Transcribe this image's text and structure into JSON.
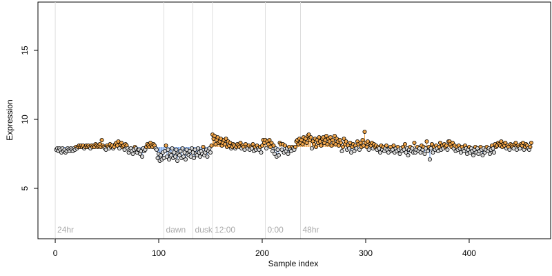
{
  "chart_data": {
    "type": "scatter",
    "x_label": "Sample index",
    "y_label": "Expression",
    "xlim": [
      -16.7,
      478.7
    ],
    "ylim": [
      1.35,
      18.5
    ],
    "xticks": [
      0,
      100,
      200,
      300,
      400
    ],
    "yticks": [
      5,
      10,
      15
    ],
    "baseline": 8.0,
    "color_above": "#f0a54a",
    "color_below": "#6d9de6",
    "markers": [
      {
        "x": 0,
        "label": "24hr"
      },
      {
        "x": 105,
        "label": "dawn"
      },
      {
        "x": 133,
        "label": "dusk"
      },
      {
        "x": 152,
        "label": "12:00"
      },
      {
        "x": 203,
        "label": "0:00"
      },
      {
        "x": 237,
        "label": "48hr"
      }
    ],
    "x": [
      1,
      2,
      3,
      4,
      5,
      6,
      7,
      8,
      9,
      10,
      11,
      12,
      13,
      14,
      15,
      16,
      17,
      18,
      19,
      20,
      21,
      22,
      23,
      24,
      25,
      26,
      27,
      28,
      29,
      30,
      31,
      32,
      33,
      34,
      35,
      36,
      37,
      38,
      39,
      40,
      41,
      42,
      43,
      44,
      45,
      46,
      47,
      48,
      49,
      50,
      51,
      52,
      53,
      54,
      55,
      56,
      57,
      58,
      59,
      60,
      61,
      62,
      63,
      64,
      65,
      66,
      67,
      68,
      69,
      70,
      71,
      72,
      73,
      74,
      75,
      76,
      77,
      78,
      79,
      80,
      81,
      82,
      83,
      84,
      85,
      86,
      87,
      88,
      89,
      90,
      91,
      92,
      93,
      94,
      95,
      96,
      97,
      98,
      99,
      100,
      101,
      102,
      103,
      104,
      105,
      106,
      107,
      108,
      109,
      110,
      111,
      112,
      113,
      114,
      115,
      116,
      117,
      118,
      119,
      120,
      121,
      122,
      123,
      124,
      125,
      126,
      127,
      128,
      129,
      130,
      131,
      132,
      133,
      134,
      135,
      136,
      137,
      138,
      139,
      140,
      141,
      142,
      143,
      144,
      145,
      146,
      147,
      148,
      149,
      150,
      151,
      152,
      153,
      154,
      155,
      156,
      157,
      158,
      159,
      160,
      161,
      162,
      163,
      164,
      165,
      166,
      167,
      168,
      169,
      170,
      171,
      172,
      173,
      174,
      175,
      176,
      177,
      178,
      179,
      180,
      181,
      182,
      183,
      184,
      185,
      186,
      187,
      188,
      189,
      190,
      191,
      192,
      193,
      194,
      195,
      196,
      197,
      198,
      199,
      200,
      201,
      202,
      203,
      204,
      205,
      206,
      207,
      208,
      209,
      210,
      211,
      212,
      213,
      214,
      215,
      216,
      217,
      218,
      219,
      220,
      221,
      222,
      223,
      224,
      225,
      226,
      227,
      228,
      229,
      230,
      231,
      232,
      233,
      234,
      235,
      236,
      237,
      238,
      239,
      240,
      241,
      242,
      243,
      244,
      245,
      246,
      247,
      248,
      249,
      250,
      251,
      252,
      253,
      254,
      255,
      256,
      257,
      258,
      259,
      260,
      261,
      262,
      263,
      264,
      265,
      266,
      267,
      268,
      269,
      270,
      271,
      272,
      273,
      274,
      275,
      276,
      277,
      278,
      279,
      280,
      281,
      282,
      283,
      284,
      285,
      286,
      287,
      288,
      289,
      290,
      291,
      292,
      293,
      294,
      295,
      296,
      297,
      298,
      299,
      300,
      301,
      302,
      303,
      304,
      305,
      306,
      307,
      308,
      309,
      310,
      311,
      312,
      313,
      314,
      315,
      316,
      317,
      318,
      319,
      320,
      321,
      322,
      323,
      324,
      325,
      326,
      327,
      328,
      329,
      330,
      331,
      332,
      333,
      334,
      335,
      336,
      337,
      338,
      339,
      340,
      341,
      342,
      343,
      344,
      345,
      346,
      347,
      348,
      349,
      350,
      351,
      352,
      353,
      354,
      355,
      356,
      357,
      358,
      359,
      360,
      361,
      362,
      363,
      364,
      365,
      366,
      367,
      368,
      369,
      370,
      371,
      372,
      373,
      374,
      375,
      376,
      377,
      378,
      379,
      380,
      381,
      382,
      383,
      384,
      385,
      386,
      387,
      388,
      389,
      390,
      391,
      392,
      393,
      394,
      395,
      396,
      397,
      398,
      399,
      400,
      401,
      402,
      403,
      404,
      405,
      406,
      407,
      408,
      409,
      410,
      411,
      412,
      413,
      414,
      415,
      416,
      417,
      418,
      419,
      420,
      421,
      422,
      423,
      424,
      425,
      426,
      427,
      428,
      429,
      430,
      431,
      432,
      433,
      434,
      435,
      436,
      437,
      438,
      439,
      440,
      441,
      442,
      443,
      444,
      445,
      446,
      447,
      448,
      449,
      450,
      451,
      452,
      453,
      454,
      455,
      456,
      457,
      458,
      459,
      460
    ],
    "values": [
      7.8,
      7.9,
      7.7,
      7.9,
      7.8,
      7.6,
      7.9,
      7.7,
      7.8,
      7.6,
      7.7,
      7.9,
      7.8,
      7.7,
      7.9,
      7.8,
      7.7,
      7.9,
      7.8,
      8.0,
      7.9,
      8.0,
      8.1,
      8.0,
      8.1,
      8.0,
      8.1,
      7.9,
      8.0,
      8.1,
      8.0,
      8.1,
      8.0,
      7.9,
      8.1,
      8.0,
      8.1,
      8.0,
      8.2,
      8.1,
      8.0,
      8.1,
      8.2,
      8.0,
      8.5,
      8.1,
      8.0,
      7.9,
      7.8,
      8.1,
      8.0,
      7.9,
      8.2,
      8.0,
      8.1,
      7.9,
      8.0,
      8.2,
      8.3,
      8.1,
      8.4,
      7.9,
      8.2,
      8.3,
      8.0,
      8.1,
      7.8,
      8.2,
      8.1,
      7.9,
      7.6,
      7.8,
      7.9,
      7.7,
      7.5,
      7.8,
      8.0,
      7.9,
      7.6,
      7.8,
      7.8,
      7.5,
      7.7,
      7.3,
      7.9,
      7.7,
      7.8,
      8.0,
      8.2,
      8.1,
      8.0,
      8.3,
      8.1,
      8.0,
      8.2,
      8.1,
      7.9,
      7.8,
      7.2,
      7.5,
      7.0,
      7.4,
      7.1,
      7.6,
      7.2,
      7.7,
      8.1,
      7.3,
      7.8,
      7.1,
      7.5,
      7.4,
      7.9,
      7.2,
      7.6,
      7.3,
      7.8,
      7.0,
      7.5,
      7.4,
      7.7,
      7.2,
      7.9,
      7.3,
      7.6,
      7.1,
      7.8,
      7.5,
      7.4,
      7.7,
      7.3,
      7.9,
      7.6,
      7.2,
      7.8,
      7.5,
      7.4,
      7.9,
      7.6,
      7.3,
      7.7,
      7.5,
      8.0,
      7.4,
      7.6,
      7.8,
      7.3,
      7.7,
      7.9,
      7.6,
      8.1,
      8.9,
      8.6,
      8.8,
      8.2,
      8.5,
      8.7,
      8.3,
      8.4,
      8.6,
      8.1,
      8.3,
      8.5,
      8.2,
      8.6,
      8.0,
      8.4,
      8.1,
      8.3,
      7.9,
      8.0,
      8.2,
      8.1,
      7.9,
      8.0,
      8.2,
      8.1,
      8.0,
      8.3,
      7.9,
      8.1,
      8.0,
      7.8,
      8.2,
      8.0,
      7.9,
      8.1,
      7.8,
      8.0,
      7.9,
      8.2,
      7.7,
      8.0,
      7.8,
      8.1,
      7.9,
      7.8,
      8.0,
      7.6,
      8.1,
      8.5,
      8.3,
      8.5,
      7.9,
      8.4,
      8.2,
      8.5,
      8.0,
      8.3,
      7.7,
      8.1,
      7.5,
      7.9,
      7.3,
      7.8,
      7.4,
      8.3,
      8.2,
      7.8,
      8.2,
      7.6,
      8.1,
      7.7,
      7.9,
      7.5,
      8.0,
      7.8,
      7.7,
      8.0,
      7.9,
      7.8,
      8.0,
      8.4,
      8.5,
      8.2,
      8.6,
      8.3,
      8.5,
      8.2,
      8.7,
      8.4,
      8.6,
      8.3,
      8.8,
      8.9,
      8.5,
      8.7,
      7.9,
      8.4,
      8.2,
      8.6,
      8.0,
      8.5,
      8.3,
      8.7,
      8.4,
      8.1,
      8.6,
      8.7,
      8.3,
      8.5,
      8.8,
      8.2,
      8.6,
      8.4,
      8.7,
      8.1,
      8.5,
      8.3,
      8.8,
      8.2,
      8.6,
      8.4,
      8.1,
      8.5,
      8.3,
      7.7,
      8.0,
      8.6,
      8.2,
      8.4,
      7.8,
      8.1,
      7.9,
      8.3,
      7.6,
      8.0,
      8.2,
      7.7,
      8.1,
      7.9,
      8.4,
      8.2,
      7.8,
      8.3,
      8.0,
      8.5,
      8.1,
      9.1,
      8.3,
      8.0,
      8.4,
      7.8,
      8.2,
      8.1,
      8.3,
      7.9,
      8.2,
      8.0,
      8.1,
      7.8,
      8.0,
      7.9,
      7.6,
      8.1,
      7.8,
      8.0,
      7.7,
      7.9,
      8.1,
      7.8,
      7.6,
      7.9,
      8.0,
      7.7,
      7.8,
      8.1,
      7.6,
      7.9,
      7.7,
      8.0,
      7.8,
      7.5,
      7.9,
      7.7,
      8.0,
      7.8,
      8.2,
      7.6,
      7.9,
      7.4,
      7.8,
      8.0,
      7.7,
      7.9,
      7.6,
      8.3,
      7.6,
      7.8,
      8.0,
      7.7,
      7.9,
      7.6,
      8.1,
      7.8,
      8.0,
      7.5,
      7.9,
      8.4,
      7.7,
      8.0,
      7.1,
      7.9,
      8.2,
      7.6,
      8.0,
      7.8,
      8.1,
      7.9,
      7.7,
      8.0,
      8.3,
      7.8,
      8.1,
      7.9,
      8.2,
      8.0,
      8.1,
      7.8,
      8.4,
      8.4,
      8.2,
      8.0,
      8.3,
      7.9,
      8.1,
      7.7,
      8.0,
      7.8,
      8.1,
      7.9,
      7.6,
      8.0,
      7.8,
      7.7,
      8.1,
      7.9,
      7.5,
      7.8,
      8.0,
      7.6,
      7.9,
      7.7,
      7.4,
      7.8,
      8.0,
      7.6,
      7.9,
      7.5,
      7.7,
      8.0,
      7.8,
      7.4,
      7.9,
      7.6,
      7.8,
      8.0,
      7.7,
      7.9,
      7.5,
      7.8,
      8.1,
      7.9,
      7.6,
      8.2,
      8.0,
      8.1,
      8.3,
      8.2,
      8.1,
      8.4,
      8.0,
      8.2,
      8.1,
      8.3,
      7.9,
      8.1,
      8.0,
      7.8,
      8.2,
      8.1,
      8.0,
      7.9,
      8.2,
      8.3,
      7.8,
      8.1,
      8.0,
      7.9,
      8.2,
      8.1,
      8.3,
      7.8,
      8.0,
      8.2,
      8.1,
      7.9,
      7.8,
      8.0,
      8.3
    ]
  }
}
